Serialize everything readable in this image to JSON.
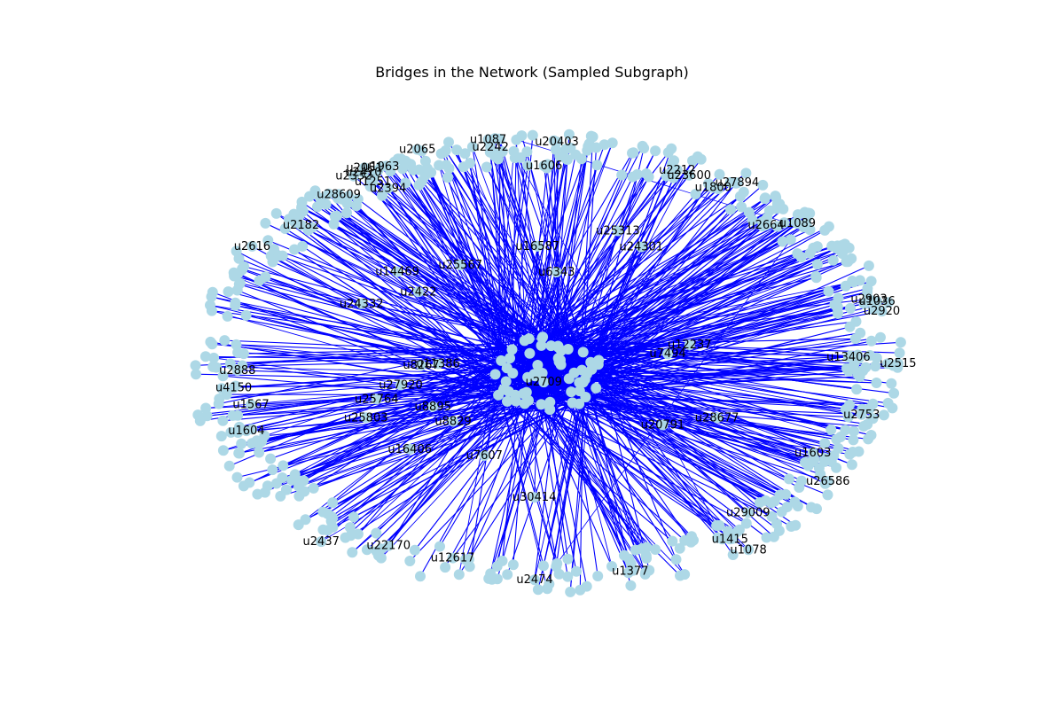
{
  "title": "Bridges in the Network (Sampled Subgraph)",
  "colors": {
    "edge": "#0000ff",
    "node": "#add8e6",
    "label": "#000000",
    "background": "#ffffff"
  },
  "graph": {
    "type": "network",
    "visible_node_labels": [
      "u25803",
      "u25764",
      "u11386",
      "u27920",
      "u12237",
      "u8829",
      "u20791",
      "u6343",
      "u7494",
      "u30414",
      "u14469",
      "u24301",
      "u8895",
      "u8267",
      "u16587",
      "u16406",
      "u24332",
      "u28677",
      "u25567",
      "u7607",
      "u25313",
      "u2422",
      "u2515",
      "u28609",
      "u2051",
      "u22170",
      "u1603",
      "u1377",
      "u1089",
      "u1251",
      "u1087",
      "u1078",
      "u2920",
      "u1036",
      "u2664",
      "u2616",
      "u23600",
      "u4150",
      "u2888",
      "u20403",
      "u2212",
      "u12617",
      "u26586",
      "u13406",
      "u27894",
      "u2182",
      "u2394",
      "u1606",
      "u1800",
      "u1567",
      "u2437",
      "u2903",
      "u29009",
      "u2242",
      "u1604",
      "u1415",
      "u2065",
      "u2753",
      "u2474",
      "u2332",
      "u2410",
      "u1963",
      "u2709"
    ]
  }
}
